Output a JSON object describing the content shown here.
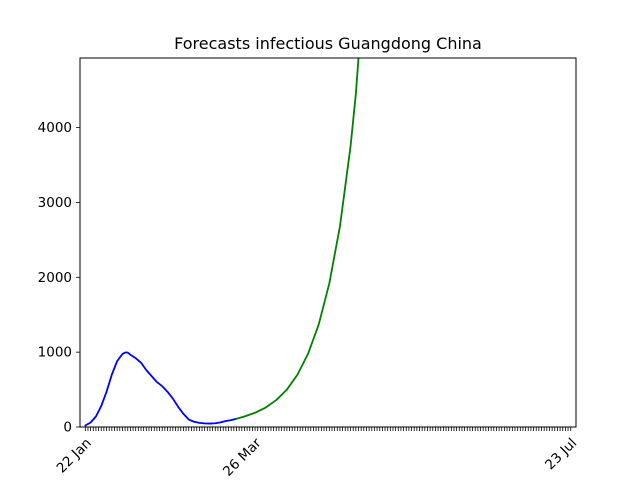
{
  "chart_data": {
    "type": "line",
    "title": "Forecasts infectious Guangdong China",
    "xlabel": "",
    "ylabel": "",
    "x_start": "2020-01-22",
    "x_end": "2020-07-23",
    "ylim": [
      0,
      4930
    ],
    "grid": false,
    "y_ticks": [
      0,
      1000,
      2000,
      3000,
      4000
    ],
    "x_tick_labels": [
      {
        "date": "2020-01-22",
        "label": "22 Jan"
      },
      {
        "date": "2020-03-26",
        "label": "26 Mar"
      },
      {
        "date": "2020-07-23",
        "label": "23 Jul"
      }
    ],
    "series": [
      {
        "color": "#0000ff",
        "points": [
          [
            "2020-01-22",
            20
          ],
          [
            "2020-01-24",
            60
          ],
          [
            "2020-01-26",
            140
          ],
          [
            "2020-01-28",
            280
          ],
          [
            "2020-01-30",
            470
          ],
          [
            "2020-02-01",
            700
          ],
          [
            "2020-02-03",
            880
          ],
          [
            "2020-02-05",
            975
          ],
          [
            "2020-02-06",
            995
          ],
          [
            "2020-02-07",
            995
          ],
          [
            "2020-02-08",
            965
          ],
          [
            "2020-02-10",
            920
          ],
          [
            "2020-02-12",
            860
          ],
          [
            "2020-02-14",
            760
          ],
          [
            "2020-02-16",
            680
          ],
          [
            "2020-02-18",
            600
          ],
          [
            "2020-02-20",
            545
          ],
          [
            "2020-02-22",
            470
          ],
          [
            "2020-02-24",
            380
          ],
          [
            "2020-02-26",
            270
          ],
          [
            "2020-02-28",
            175
          ],
          [
            "2020-03-01",
            100
          ],
          [
            "2020-03-03",
            70
          ],
          [
            "2020-03-05",
            55
          ],
          [
            "2020-03-07",
            48
          ],
          [
            "2020-03-09",
            46
          ],
          [
            "2020-03-11",
            50
          ],
          [
            "2020-03-13",
            62
          ],
          [
            "2020-03-15",
            80
          ],
          [
            "2020-03-17",
            92
          ],
          [
            "2020-03-19",
            110
          ]
        ]
      },
      {
        "color": "#008000",
        "points": [
          [
            "2020-03-19",
            110
          ],
          [
            "2020-03-22",
            140
          ],
          [
            "2020-03-26",
            190
          ],
          [
            "2020-03-30",
            260
          ],
          [
            "2020-04-03",
            360
          ],
          [
            "2020-04-07",
            500
          ],
          [
            "2020-04-11",
            700
          ],
          [
            "2020-04-15",
            980
          ],
          [
            "2020-04-19",
            1370
          ],
          [
            "2020-04-23",
            1920
          ],
          [
            "2020-04-27",
            2680
          ],
          [
            "2020-05-01",
            3750
          ],
          [
            "2020-05-03",
            4450
          ],
          [
            "2020-05-04",
            4930
          ]
        ]
      }
    ]
  }
}
